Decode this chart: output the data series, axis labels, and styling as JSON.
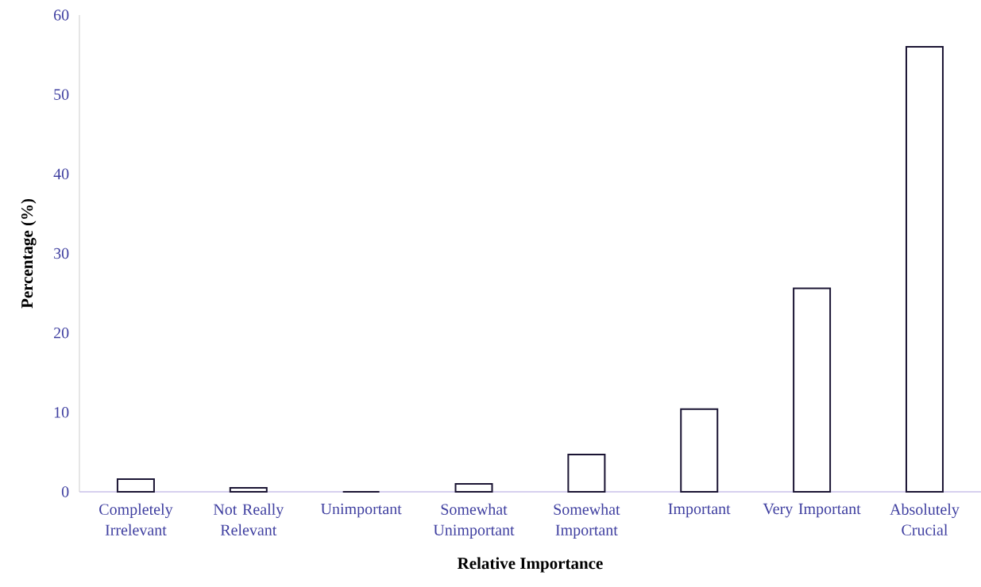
{
  "chart_data": {
    "type": "bar",
    "xlabel": "Relative Importance",
    "ylabel": "Percentage (%)",
    "categories": [
      "Completely Irrelevant",
      "Not Really Relevant",
      "Unimportant",
      "Somewhat Unimportant",
      "Somewhat Important",
      "Important",
      "Very Important",
      "Absolutely Crucial"
    ],
    "values": [
      1.6,
      0.5,
      0,
      1.0,
      4.7,
      10.4,
      25.6,
      56.0
    ],
    "color": "#1a1433",
    "ylim": [
      0,
      60
    ],
    "yticks": [
      0,
      10,
      20,
      30,
      40,
      50,
      60
    ]
  }
}
